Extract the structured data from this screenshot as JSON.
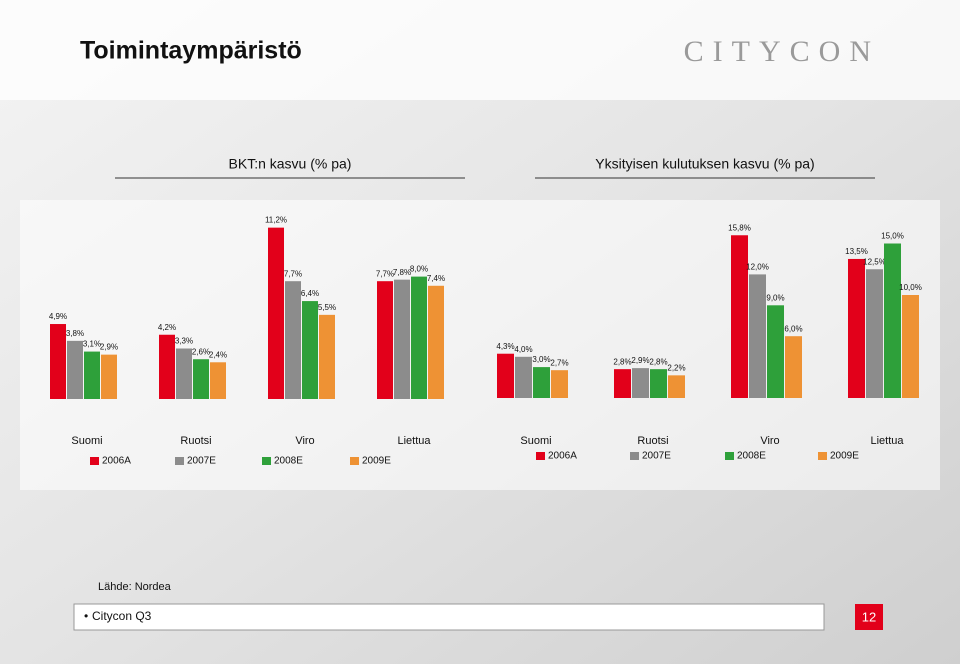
{
  "slide": {
    "title": "Toimintaympäristö",
    "logo": "CITYCON",
    "source": "Lähde: Nordea",
    "footer": "Citycon Q3",
    "page": "12"
  },
  "chart_data": [
    {
      "type": "bar",
      "title": "BKT:n kasvu (% pa)",
      "categories": [
        "Suomi",
        "Ruotsi",
        "Viro",
        "Liettua"
      ],
      "series": [
        {
          "name": "2006A",
          "color": "#e2001a",
          "values": [
            4.9,
            4.2,
            11.2,
            7.7
          ],
          "value_labels": [
            "4,9%",
            "4,2%",
            "11,2%",
            "7,7%"
          ]
        },
        {
          "name": "2007E",
          "color": "#8c8c8c",
          "values": [
            3.8,
            3.3,
            7.7,
            7.8
          ],
          "value_labels": [
            "3,8%",
            "3,3%",
            "7,7%",
            "7,8%"
          ]
        },
        {
          "name": "2008E",
          "color": "#2ea03a",
          "values": [
            3.1,
            2.6,
            6.4,
            8.0
          ],
          "value_labels": [
            "3,1%",
            "2,6%",
            "6,4%",
            "8,0%"
          ]
        },
        {
          "name": "2009E",
          "color": "#ee9234",
          "values": [
            2.9,
            2.4,
            5.5,
            7.4
          ],
          "value_labels": [
            "2,9%",
            "2,4%",
            "5,5%",
            "7,4%"
          ]
        }
      ]
    },
    {
      "type": "bar",
      "title": "Yksityisen kulutuksen kasvu (% pa)",
      "categories": [
        "Suomi",
        "Ruotsi",
        "Viro",
        "Liettua"
      ],
      "series": [
        {
          "name": "2006A",
          "color": "#e2001a",
          "values": [
            4.3,
            2.8,
            15.8,
            13.5
          ],
          "value_labels": [
            "4,3%",
            "2,8%",
            "15,8%",
            "13,5%"
          ]
        },
        {
          "name": "2007E",
          "color": "#8c8c8c",
          "values": [
            4.0,
            2.9,
            12.0,
            12.5
          ],
          "value_labels": [
            "4,0%",
            "2,9%",
            "12,0%",
            "12,5%"
          ]
        },
        {
          "name": "2008E",
          "color": "#2ea03a",
          "values": [
            3.0,
            2.8,
            9.0,
            15.0
          ],
          "value_labels": [
            "3,0%",
            "2,8%",
            "9,0%",
            "15,0%"
          ]
        },
        {
          "name": "2009E",
          "color": "#ee9234",
          "values": [
            2.7,
            2.2,
            6.0,
            10.0
          ],
          "value_labels": [
            "2,7%",
            "2,2%",
            "6,0%",
            "10,0%"
          ]
        }
      ]
    }
  ]
}
